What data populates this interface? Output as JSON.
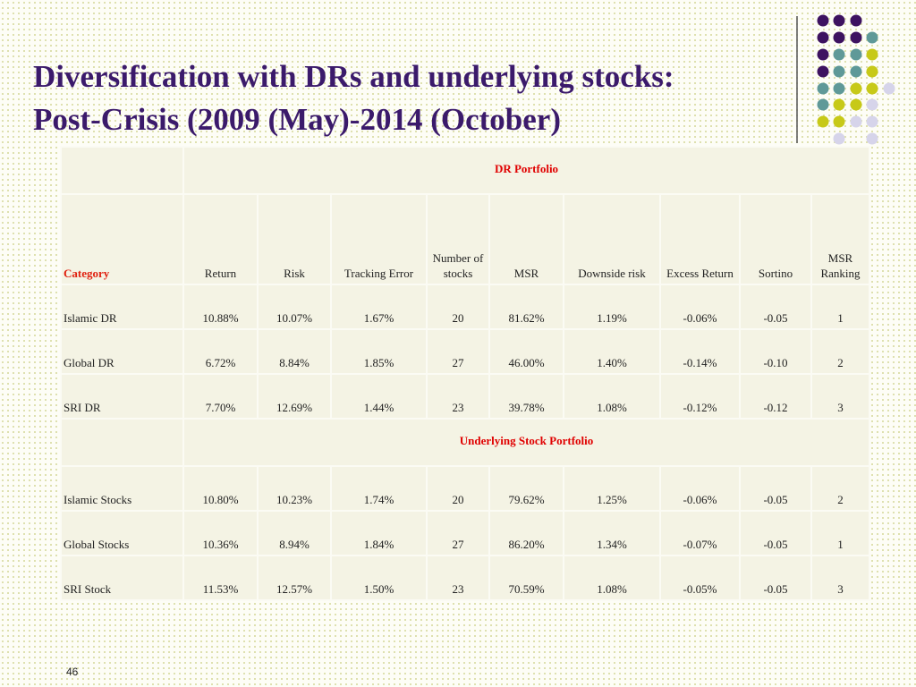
{
  "title": [
    "Diversification with DRs and underlying stocks:",
    "Post-Crisis (2009 (May)-2014 (October)"
  ],
  "table": {
    "columns": [
      "Category",
      "Return",
      "Risk",
      "Tracking Error",
      "Number of stocks",
      "MSR",
      "Downside risk",
      "Excess Return",
      "Sortino",
      "MSR Ranking"
    ],
    "sections": [
      {
        "title": "DR Portfolio",
        "rows": [
          [
            "Islamic DR",
            "10.88%",
            "10.07%",
            "1.67%",
            "20",
            "81.62%",
            "1.19%",
            "-0.06%",
            "-0.05",
            "1"
          ],
          [
            "Global DR",
            "6.72%",
            "8.84%",
            "1.85%",
            "27",
            "46.00%",
            "1.40%",
            "-0.14%",
            "-0.10",
            "2"
          ],
          [
            "SRI DR",
            "7.70%",
            "12.69%",
            "1.44%",
            "23",
            "39.78%",
            "1.08%",
            "-0.12%",
            "-0.12",
            "3"
          ]
        ]
      },
      {
        "title": "Underlying Stock Portfolio",
        "rows": [
          [
            "Islamic Stocks",
            "10.80%",
            "10.23%",
            "1.74%",
            "20",
            "79.62%",
            "1.25%",
            "-0.06%",
            "-0.05",
            "2"
          ],
          [
            "Global Stocks",
            "10.36%",
            "8.94%",
            "1.84%",
            "27",
            "86.20%",
            "1.34%",
            "-0.07%",
            "-0.05",
            "1"
          ],
          [
            "SRI Stock",
            "11.53%",
            "12.57%",
            "1.50%",
            "23",
            "70.59%",
            "1.08%",
            "-0.05%",
            "-0.05",
            "3"
          ]
        ]
      }
    ]
  },
  "page_number": "46"
}
